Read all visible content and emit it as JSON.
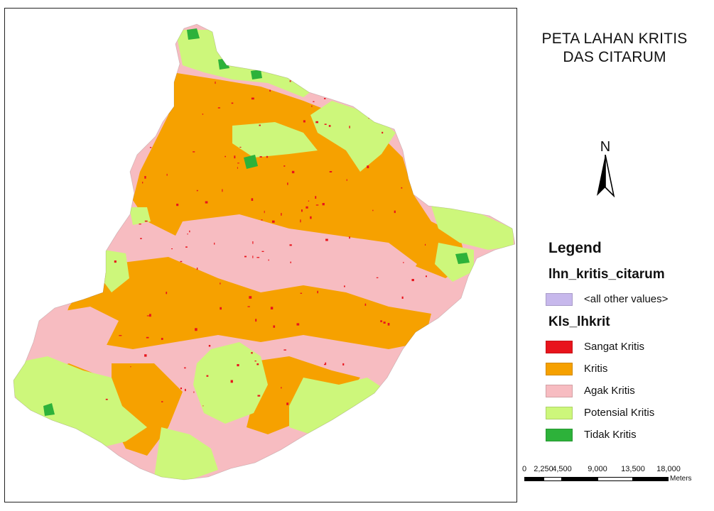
{
  "title": {
    "line1": "PETA LAHAN KRITIS",
    "line2": "DAS CITARUM"
  },
  "north_arrow": {
    "label": "N",
    "icon": "north-arrow-icon"
  },
  "legend": {
    "heading": "Legend",
    "layer_name": "lhn_kritis_citarum",
    "other_values": {
      "label": "<all other values>",
      "color": "#c7b8ec"
    },
    "field_name": "Kls_lhkrit",
    "classes": [
      {
        "label": "Sangat Kritis",
        "color": "#e8141c"
      },
      {
        "label": "Kritis",
        "color": "#f6a100"
      },
      {
        "label": "Agak Kritis",
        "color": "#f7bcc1"
      },
      {
        "label": "Potensial Kritis",
        "color": "#cdf77b"
      },
      {
        "label": "Tidak Kritis",
        "color": "#2db23a"
      }
    ]
  },
  "scale_bar": {
    "ticks": [
      "0",
      "2,250",
      "4,500",
      "9,000",
      "13,500",
      "18,000"
    ],
    "units": "Meters"
  }
}
